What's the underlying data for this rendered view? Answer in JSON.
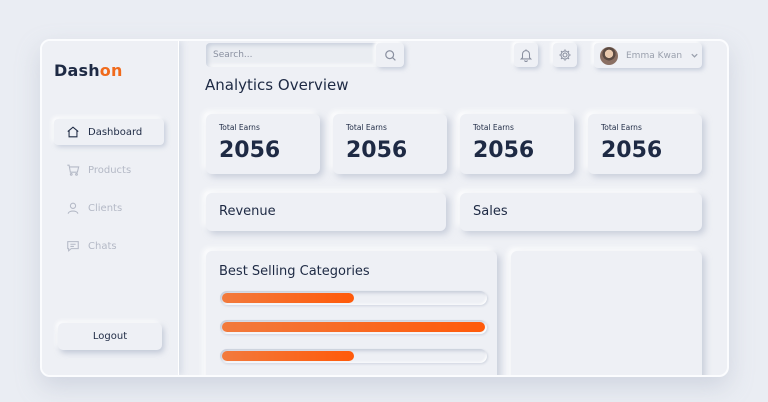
{
  "brand": {
    "prefix": "Dash",
    "accent": "on"
  },
  "sidebar": {
    "items": [
      {
        "label": "Dashboard",
        "icon": "home-icon"
      },
      {
        "label": "Products",
        "icon": "cart-icon"
      },
      {
        "label": "Clients",
        "icon": "user-icon"
      },
      {
        "label": "Chats",
        "icon": "chat-icon"
      }
    ],
    "logout_label": "Logout"
  },
  "header": {
    "search_placeholder": "Search...",
    "user_name": "Emma Kwan"
  },
  "main": {
    "title": "Analytics Overview",
    "stats": [
      {
        "label": "Total Earns",
        "value": "2056"
      },
      {
        "label": "Total Earns",
        "value": "2056"
      },
      {
        "label": "Total Earns",
        "value": "2056"
      },
      {
        "label": "Total Earns",
        "value": "2056"
      }
    ],
    "revenue_title": "Revenue",
    "sales_title": "Sales",
    "best_selling": {
      "title": "Best Selling Categories",
      "progress": [
        0.5,
        1.0,
        0.5
      ]
    }
  },
  "colors": {
    "accent": "#f06a1c",
    "text": "#1e2a44",
    "muted": "#b4b9c6"
  }
}
